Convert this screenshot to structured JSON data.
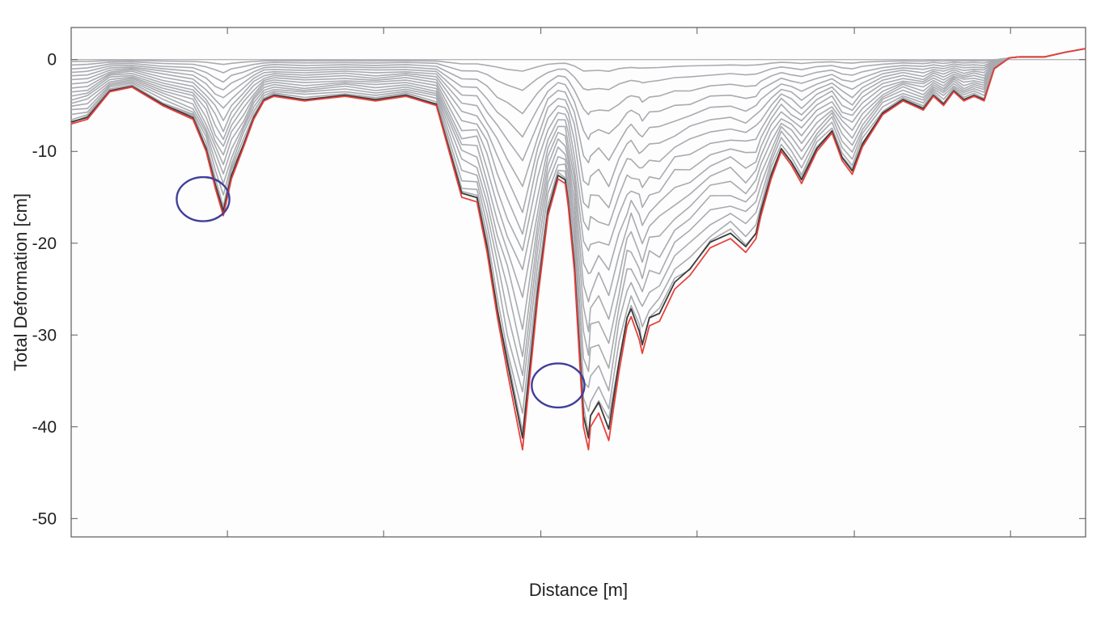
{
  "chart_data": {
    "type": "line",
    "title": "",
    "xlabel": "Distance [m]",
    "ylabel": "Total Deformation [cm]",
    "ylim": [
      -52,
      3.5
    ],
    "xlim": [
      0,
      1
    ],
    "yticks": [
      0,
      -10,
      -20,
      -30,
      -40,
      -50
    ],
    "ytick_labels": [
      "0",
      "-10",
      "-20",
      "-30",
      "-40",
      "-50"
    ],
    "xticks": [
      0.154,
      0.308,
      0.463,
      0.617,
      0.772,
      0.926
    ],
    "xtick_labels": [],
    "grid": false,
    "legend": "none",
    "colors": {
      "final": "#e8413c",
      "penultimate": "#3a3a3a",
      "earlier": "#a9abb0",
      "highlight": "#3f3f9c",
      "zero": "#b5b5b5"
    },
    "profile_x": [
      0.0,
      0.016,
      0.038,
      0.06,
      0.09,
      0.12,
      0.133,
      0.142,
      0.15,
      0.158,
      0.17,
      0.18,
      0.19,
      0.2,
      0.23,
      0.27,
      0.3,
      0.33,
      0.36,
      0.385,
      0.4,
      0.41,
      0.42,
      0.43,
      0.445,
      0.46,
      0.47,
      0.48,
      0.487,
      0.49,
      0.496,
      0.505,
      0.51,
      0.512,
      0.52,
      0.53,
      0.54,
      0.548,
      0.552,
      0.56,
      0.563,
      0.57,
      0.58,
      0.595,
      0.61,
      0.63,
      0.65,
      0.665,
      0.675,
      0.68,
      0.69,
      0.7,
      0.71,
      0.72,
      0.735,
      0.75,
      0.76,
      0.77,
      0.78,
      0.8,
      0.82,
      0.84,
      0.85,
      0.86,
      0.87,
      0.88,
      0.89,
      0.9,
      0.91,
      0.925,
      0.935,
      0.96,
      0.98,
      1.0
    ],
    "profile_shape": [
      0.19,
      0.16,
      0.08,
      0.08,
      0.14,
      0.18,
      0.3,
      0.45,
      0.55,
      0.42,
      0.28,
      0.16,
      0.1,
      0.09,
      0.1,
      0.09,
      0.1,
      0.1,
      0.12,
      0.37,
      0.39,
      0.53,
      0.7,
      0.83,
      0.99,
      0.62,
      0.42,
      0.33,
      0.35,
      0.42,
      0.58,
      0.96,
      0.99,
      0.95,
      0.93,
      0.96,
      0.82,
      0.72,
      0.7,
      0.75,
      0.82,
      0.7,
      0.69,
      0.61,
      0.55,
      0.48,
      0.46,
      0.49,
      0.46,
      0.4,
      0.32,
      0.26,
      0.29,
      0.32,
      0.24,
      0.2,
      0.26,
      0.3,
      0.23,
      0.17,
      0.13,
      0.15,
      0.11,
      0.13,
      0.09,
      0.12,
      0.1,
      0.12,
      0.03,
      0.0,
      0.0,
      -0.01,
      -0.02,
      -0.02
    ],
    "series": [
      {
        "role": "final",
        "values": [
          -7.0,
          -6.5,
          -3.5,
          -3.0,
          -5.0,
          -6.5,
          -10.0,
          -14.0,
          -17.0,
          -13.0,
          -9.5,
          -6.5,
          -4.5,
          -4.0,
          -4.5,
          -4.0,
          -4.5,
          -4.0,
          -5.0,
          -15.0,
          -15.5,
          -21.0,
          -28.0,
          -34.0,
          -42.5,
          -26.0,
          -17.0,
          -13.0,
          -13.5,
          -16.0,
          -23.0,
          -40.0,
          -42.5,
          -40.0,
          -38.5,
          -41.5,
          -34.0,
          -29.0,
          -28.0,
          -30.5,
          -32.0,
          -29.0,
          -28.5,
          -25.0,
          -23.5,
          -20.5,
          -19.5,
          -21.0,
          -19.5,
          -17.0,
          -13.0,
          -10.0,
          -11.5,
          -13.5,
          -10.0,
          -8.0,
          -11.0,
          -12.5,
          -9.5,
          -6.0,
          -4.5,
          -5.5,
          -4.0,
          -5.0,
          -3.5,
          -4.5,
          -4.0,
          -4.5,
          -1.0,
          0.2,
          0.3,
          0.3,
          0.8,
          1.2
        ]
      }
    ],
    "earlier_series_factors": [
      0.03,
      0.08,
      0.14,
      0.2,
      0.26,
      0.32,
      0.38,
      0.44,
      0.5,
      0.56,
      0.62,
      0.68,
      0.74,
      0.8,
      0.86,
      0.92,
      0.96
    ],
    "annotations": [
      {
        "type": "ellipse",
        "x": 0.13,
        "y": -15.2,
        "rx": 0.026,
        "ry": 2.4
      },
      {
        "type": "ellipse",
        "x": 0.48,
        "y": -35.5,
        "rx": 0.026,
        "ry": 2.4
      }
    ]
  }
}
